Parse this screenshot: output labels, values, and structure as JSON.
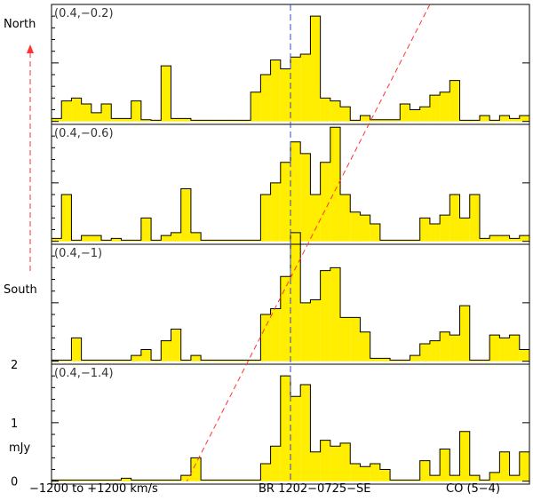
{
  "labels": {
    "north": "North",
    "south": "South",
    "y_unit": "mJy",
    "velocity_range": "−1200 to +1200 km/s",
    "source": "BR 1202−0725−SE",
    "line": "CO (5−4)"
  },
  "colors": {
    "fill": "#ffee00",
    "outline": "#000000",
    "center_line": "#3344cc",
    "trend_line": "#ff3333"
  },
  "chart_data": {
    "type": "bar",
    "style": "step histogram with filled bins, four vertically stacked panels sharing one x axis",
    "x_range_kms": [
      -1200,
      1200
    ],
    "bin_width_kms": 60,
    "y_range_mJy": [
      -0.05,
      2.0
    ],
    "y_ticks": [
      0,
      1,
      2
    ],
    "center_velocity_kms": 0,
    "panels": [
      {
        "offset_label": "(0.4,−0.2)",
        "values": [
          0.05,
          0.35,
          0.4,
          0.3,
          0.15,
          0.3,
          0.05,
          0.05,
          0.35,
          0.03,
          0.02,
          0.95,
          0.05,
          0.05,
          0.02,
          0.02,
          0.02,
          0.02,
          0.02,
          0.02,
          0.5,
          0.8,
          1.05,
          0.9,
          1.1,
          1.15,
          1.8,
          0.4,
          0.35,
          0.25,
          0.02,
          0.1,
          0.03,
          0.03,
          0.03,
          0.3,
          0.2,
          0.25,
          0.45,
          0.5,
          0.7,
          0.02,
          0.02,
          0.1,
          0.02,
          0.1,
          0.05,
          0.1
        ]
      },
      {
        "offset_label": "(0.4,−0.6)",
        "values": [
          0.05,
          0.8,
          0.02,
          0.1,
          0.1,
          0.02,
          0.05,
          0.02,
          0.02,
          0.4,
          0.02,
          0.1,
          0.15,
          0.9,
          0.15,
          0.02,
          0.02,
          0.02,
          0.02,
          0.02,
          0.02,
          0.8,
          1.0,
          1.35,
          1.7,
          1.5,
          0.8,
          1.35,
          1.95,
          0.8,
          0.5,
          0.45,
          0.3,
          0.02,
          0.02,
          0.02,
          0.02,
          0.4,
          0.3,
          0.45,
          0.8,
          0.4,
          0.8,
          0.05,
          0.1,
          0.1,
          0.05,
          0.1
        ]
      },
      {
        "offset_label": "(0.4,−1)",
        "values": [
          0.02,
          0.02,
          0.4,
          0.02,
          0.02,
          0.02,
          0.02,
          0.02,
          0.1,
          0.2,
          0.02,
          0.35,
          0.55,
          0.02,
          0.1,
          0.02,
          0.02,
          0.02,
          0.02,
          0.02,
          0.02,
          0.8,
          0.9,
          1.45,
          2.2,
          1.0,
          1.05,
          1.55,
          1.6,
          0.75,
          0.75,
          0.5,
          0.05,
          0.05,
          0.02,
          0.02,
          0.1,
          0.3,
          0.35,
          0.5,
          0.45,
          0.95,
          0.02,
          0.02,
          0.45,
          0.4,
          0.45,
          0.2
        ]
      },
      {
        "offset_label": "(0.4,−1.4)",
        "values": [
          0.02,
          0.02,
          0.02,
          0.02,
          0.02,
          0.02,
          0.02,
          0.05,
          0.02,
          0.02,
          0.02,
          0.02,
          0.02,
          0.1,
          0.4,
          0.02,
          0.02,
          0.02,
          0.02,
          0.02,
          0.02,
          0.3,
          0.6,
          1.8,
          1.45,
          1.65,
          0.5,
          0.7,
          0.6,
          0.65,
          0.3,
          0.25,
          0.3,
          0.2,
          0.02,
          0.02,
          0.02,
          0.35,
          0.1,
          0.55,
          0.1,
          0.85,
          0.1,
          0.02,
          0.15,
          0.5,
          0.1,
          0.5
        ]
      }
    ],
    "trend_line": {
      "style": "dashed",
      "description_points": [
        {
          "panel": 1,
          "velocity_kms": 700,
          "y_mJy": 2.0
        },
        {
          "panel": 4,
          "velocity_kms": -520,
          "y_mJy": 0.0
        }
      ]
    }
  }
}
